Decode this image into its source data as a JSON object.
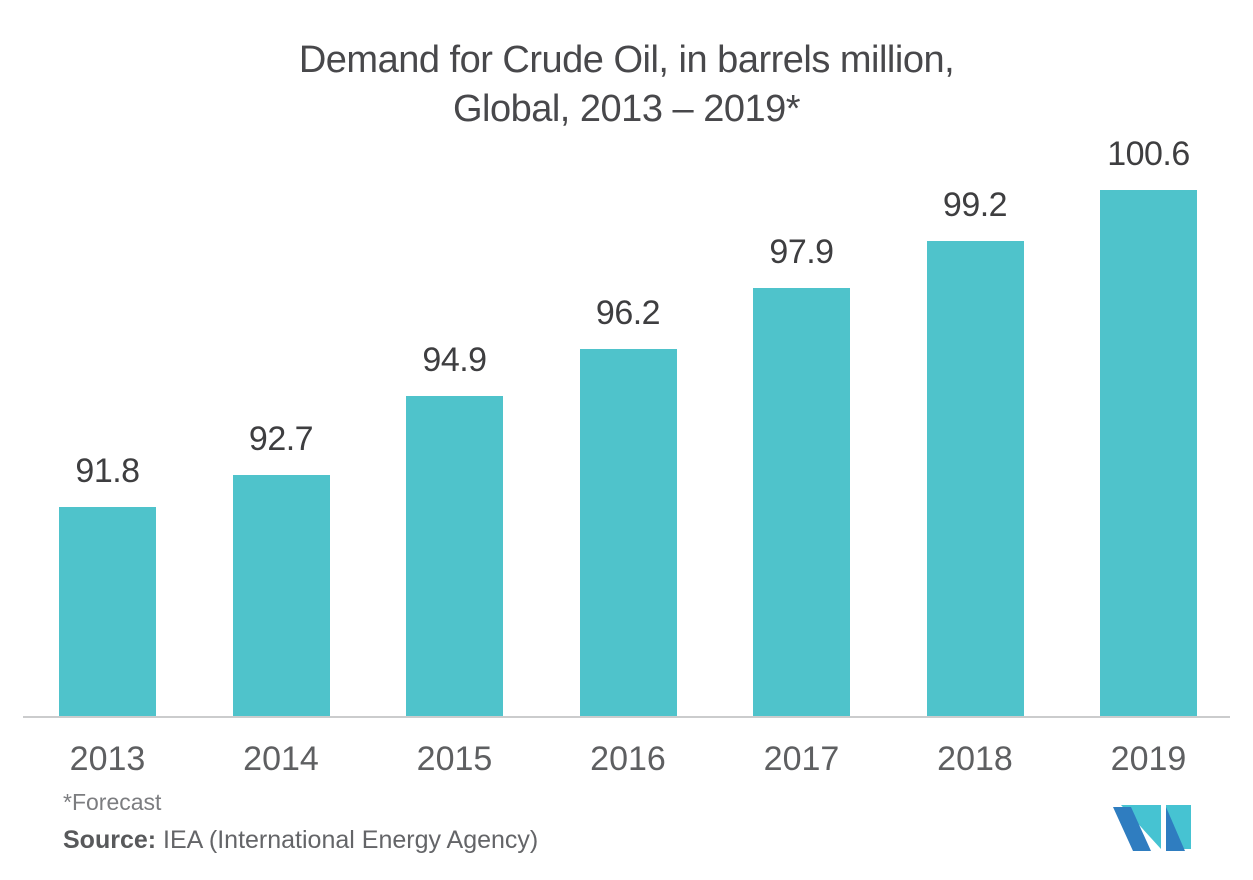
{
  "title": {
    "line1": "Demand for Crude Oil, in barrels million,",
    "line2": "Global, 2013 – 2019*"
  },
  "chart_data": {
    "type": "bar",
    "title": "Demand for Crude Oil, in barrels million, Global, 2013 – 2019*",
    "categories": [
      "2013",
      "2014",
      "2015",
      "2016",
      "2017",
      "2018",
      "2019"
    ],
    "values": [
      91.8,
      92.7,
      94.9,
      96.2,
      97.9,
      99.2,
      100.6
    ],
    "xlabel": "",
    "ylabel": "",
    "ylim": [
      86,
      102
    ],
    "grid": false,
    "legend": "none",
    "value_labels_shown": true,
    "bar_color": "#4FC3CB",
    "axis_line_color": "#CBCCCD"
  },
  "footnotes": {
    "forecast": "*Forecast",
    "source_label": "Source:",
    "source_text": " IEA (International Energy Agency)"
  },
  "logo": {
    "name": "mordor-intelligence-logo",
    "blue": "#2F7DC0",
    "teal": "#46C3D2"
  },
  "colors": {
    "background": "#FFFFFF",
    "title_text": "#48484B",
    "value_label_text": "#3E3E40",
    "year_label_text": "#5E5F61",
    "forecast_text": "#7C7D80",
    "source_text": "#646568"
  }
}
